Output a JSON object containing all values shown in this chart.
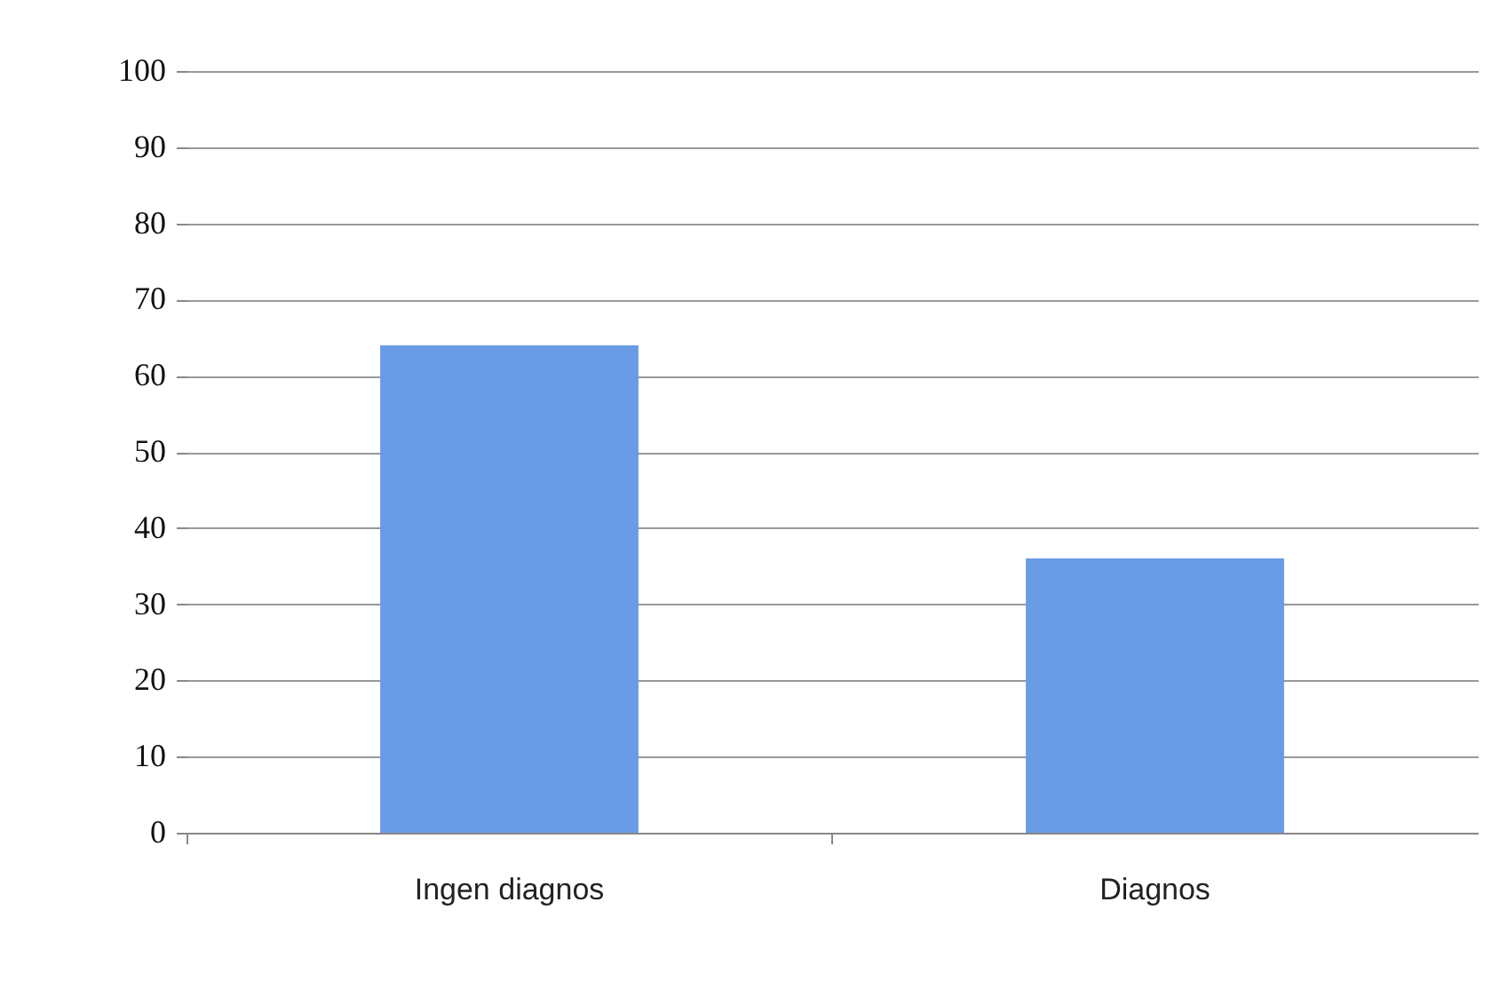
{
  "chart_data": {
    "type": "bar",
    "categories": [
      "Ingen diagnos",
      "Diagnos"
    ],
    "values": [
      64,
      36
    ],
    "color": "#6a9be6",
    "ylim": [
      0,
      100
    ],
    "yticks": [
      0,
      10,
      20,
      30,
      40,
      50,
      60,
      70,
      80,
      90,
      100
    ],
    "grid": "y"
  }
}
